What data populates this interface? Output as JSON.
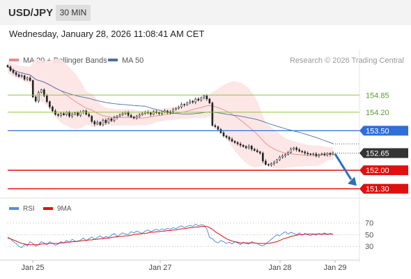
{
  "header": {
    "symbol": "USD/JPY",
    "timeframe": "30 MIN",
    "datetime": "Wednesday, January 28, 2026 11:08:41 AM CET"
  },
  "colors": {
    "candle": "#222222",
    "ma20": "#e98a8a",
    "bollinger_fill": "#fde3e3",
    "ma50": "#4a6fa5",
    "resistance": "#8cc63f",
    "pivot": "#2e6fd8",
    "support": "#e01010",
    "last_price": "#333333",
    "rsi": "#5b8bd9",
    "rsi_ma": "#e01010",
    "arrow": "#2e6fb8"
  },
  "chart_data": [
    {
      "type": "candlestick",
      "legend": [
        {
          "name": "MA 20 + Bollinger Bands",
          "color": "#e98a8a"
        },
        {
          "name": "MA 50",
          "color": "#4a6fa5"
        }
      ],
      "watermark": "Research © 2026 Trading Central",
      "x_ticks": [
        "Jan 25",
        "Jan 27",
        "Jan 28",
        "Jan 29"
      ],
      "ylim": [
        151.0,
        156.6
      ],
      "levels": [
        {
          "label": "154.85",
          "value": 154.85,
          "kind": "resistance"
        },
        {
          "label": "154.20",
          "value": 154.2,
          "kind": "resistance"
        },
        {
          "label": "153.50",
          "value": 153.5,
          "kind": "pivot"
        },
        {
          "label": "152.65",
          "value": 152.65,
          "kind": "last"
        },
        {
          "label": "152.00",
          "value": 152.0,
          "kind": "support"
        },
        {
          "label": "151.30",
          "value": 151.3,
          "kind": "support"
        }
      ],
      "close": [
        155.92,
        155.78,
        155.7,
        155.62,
        155.55,
        155.58,
        155.45,
        155.5,
        155.4,
        154.78,
        154.62,
        154.95,
        155.05,
        154.82,
        154.6,
        154.4,
        154.25,
        154.12,
        154.08,
        154.15,
        154.1,
        154.2,
        154.05,
        154.12,
        154.18,
        154.08,
        154.2,
        154.25,
        154.12,
        154.05,
        153.85,
        153.75,
        153.82,
        153.72,
        153.9,
        153.8,
        153.95,
        153.88,
        154.0,
        154.05,
        154.1,
        154.15,
        154.2,
        154.08,
        154.02,
        153.98,
        154.05,
        154.1,
        154.15,
        154.2,
        154.18,
        154.12,
        154.22,
        154.18,
        154.15,
        154.2,
        154.25,
        154.18,
        154.22,
        154.3,
        154.35,
        154.4,
        154.5,
        154.48,
        154.55,
        154.62,
        154.58,
        154.7,
        154.65,
        154.75,
        154.82,
        154.7,
        154.55,
        153.7,
        153.65,
        153.55,
        153.42,
        153.3,
        153.25,
        153.18,
        153.1,
        153.05,
        153.0,
        152.95,
        152.9,
        152.85,
        152.92,
        152.8,
        152.75,
        152.7,
        152.65,
        152.35,
        152.22,
        152.2,
        152.25,
        152.3,
        152.4,
        152.5,
        152.55,
        152.6,
        152.68,
        152.8,
        152.85,
        152.78,
        152.72,
        152.7,
        152.65,
        152.62,
        152.6,
        152.62,
        152.55,
        152.6,
        152.62,
        152.58,
        152.64,
        152.6,
        152.65
      ]
    },
    {
      "type": "line",
      "legend": [
        {
          "name": "RSI",
          "color": "#5b8bd9"
        },
        {
          "name": "9MA",
          "color": "#e01010"
        }
      ],
      "ylim": [
        10,
        85
      ],
      "y_ticks": [
        70,
        50,
        30
      ],
      "x_ticks": [
        "Jan 25",
        "Jan 27",
        "Jan 28",
        "Jan 29"
      ],
      "rsi": [
        46,
        43,
        38,
        35,
        30,
        28,
        33,
        31,
        38,
        35,
        30,
        33,
        38,
        36,
        33,
        38,
        35,
        32,
        34,
        38,
        36,
        40,
        37,
        42,
        39,
        38,
        41,
        44,
        40,
        43,
        46,
        42,
        45,
        48,
        44,
        47,
        45,
        49,
        52,
        47,
        50,
        53,
        51,
        50,
        55,
        53,
        56,
        54,
        52,
        56,
        58,
        55,
        57,
        59,
        57,
        60,
        58,
        61,
        59,
        62,
        60,
        63,
        65,
        62,
        64,
        66,
        64,
        68,
        65,
        67,
        66,
        60,
        45,
        43,
        38,
        36,
        40,
        38,
        35,
        37,
        34,
        38,
        36,
        33,
        37,
        35,
        34,
        38,
        36,
        35,
        32,
        31,
        34,
        38,
        42,
        46,
        50,
        48,
        52,
        55,
        51,
        54,
        52,
        50,
        53,
        49,
        52,
        50,
        48,
        51,
        49,
        52,
        50,
        53,
        50,
        52,
        50
      ],
      "ma9": [
        44,
        43,
        41,
        39,
        37,
        35,
        34,
        33,
        33,
        33,
        33,
        33,
        34,
        34,
        34,
        35,
        35,
        35,
        35,
        36,
        36,
        37,
        37,
        38,
        38,
        39,
        39,
        40,
        40,
        41,
        41,
        42,
        42,
        43,
        43,
        44,
        44,
        45,
        46,
        46,
        47,
        47,
        48,
        48,
        49,
        50,
        51,
        51,
        52,
        52,
        53,
        54,
        54,
        55,
        55,
        56,
        56,
        57,
        57,
        58,
        58,
        59,
        60,
        60,
        61,
        62,
        62,
        63,
        63,
        64,
        64,
        64,
        62,
        59,
        55,
        52,
        49,
        46,
        43,
        41,
        39,
        38,
        37,
        36,
        36,
        36,
        36,
        36,
        36,
        35,
        35,
        35,
        35,
        35,
        36,
        37,
        38,
        40,
        42,
        44,
        45,
        47,
        48,
        49,
        50,
        50,
        51,
        51,
        51,
        51,
        51,
        51,
        51,
        51,
        51,
        51,
        51
      ]
    }
  ]
}
